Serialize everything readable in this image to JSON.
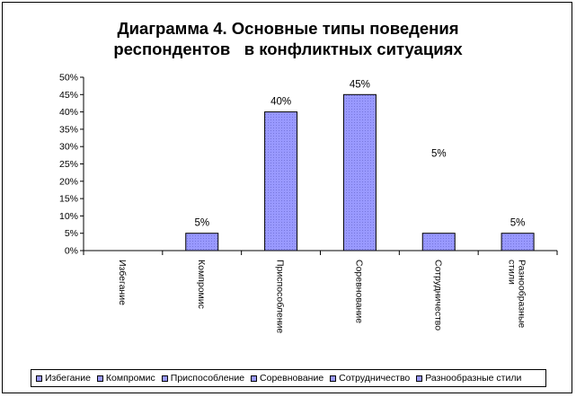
{
  "colors": {
    "bar_fill": "#9999ff",
    "bar_stroke": "#000000",
    "axis": "#000000",
    "background": "#ffffff"
  },
  "chart_data": {
    "type": "bar",
    "title_lines": [
      "Диаграмма 4. Основные типы поведения",
      "респондентов   в конфликтных ситуациях"
    ],
    "categories": [
      "Избегание",
      "Компромис",
      "Приспособление",
      "Соревнование",
      "Сотрудничество",
      "Разнообразные стили"
    ],
    "category_label_lines": [
      [
        "Избегание"
      ],
      [
        "Компромис"
      ],
      [
        "Приспособление"
      ],
      [
        "Соревнование"
      ],
      [
        "Сотрудничество"
      ],
      [
        "Разнообразные",
        "стили"
      ]
    ],
    "values": [
      0,
      5,
      40,
      45,
      5,
      5
    ],
    "data_labels": [
      "",
      "5%",
      "40%",
      "45%",
      "5%",
      "5%"
    ],
    "y_ticks": [
      "0%",
      "5%",
      "10%",
      "15%",
      "20%",
      "25%",
      "30%",
      "35%",
      "40%",
      "45%",
      "50%"
    ],
    "ylim": [
      0,
      50
    ],
    "grid": false,
    "legend_position": "bottom",
    "legend_entries": [
      "Избегание",
      "Компромис",
      "Приспособление",
      "Соревнование",
      "Сотрудничество",
      "Разнообразные стили"
    ]
  }
}
